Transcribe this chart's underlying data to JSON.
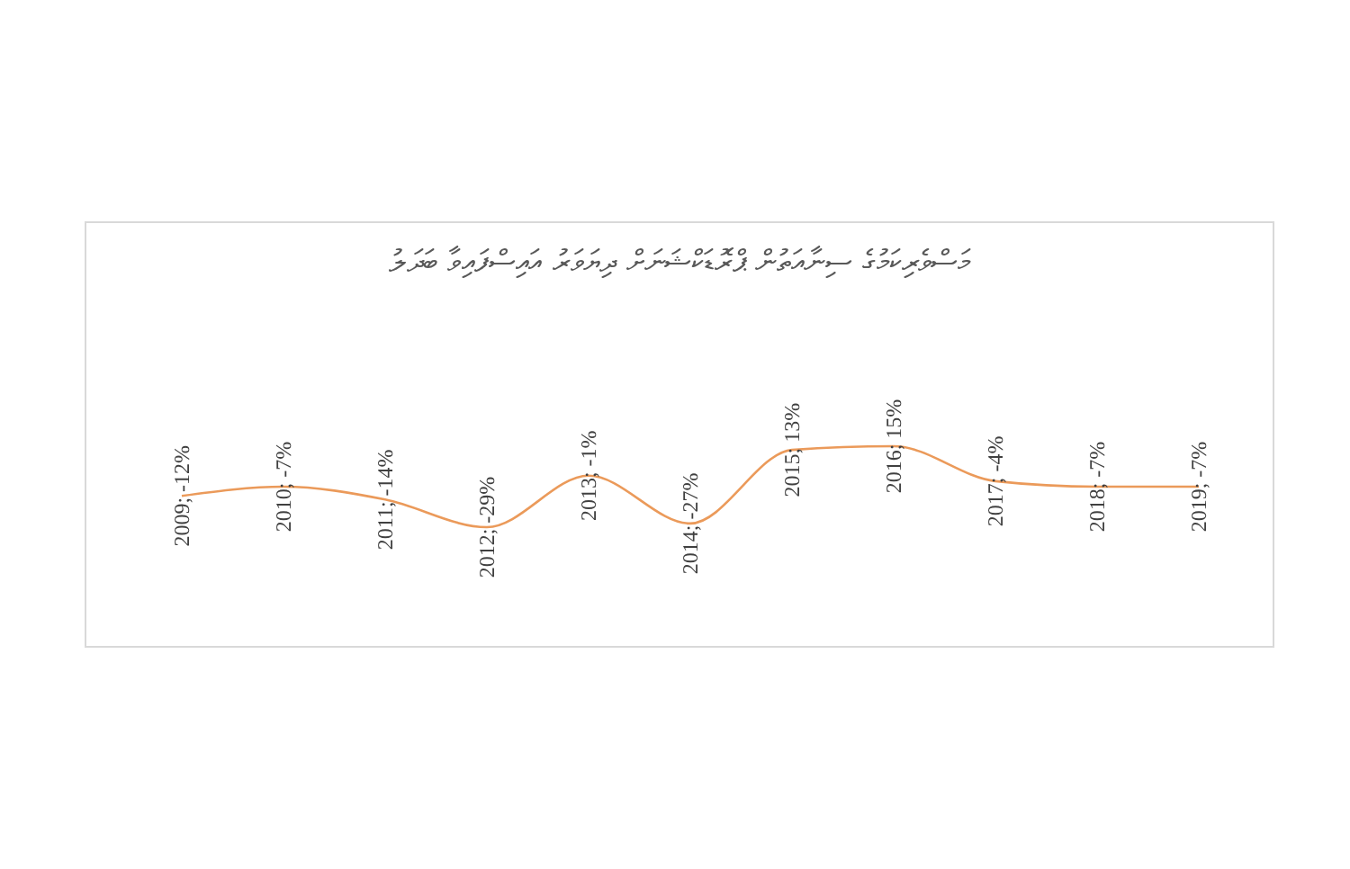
{
  "chart_data": {
    "type": "line",
    "title": "މަސްވެރިކަމުގެ ސިނާއަތުން ޕްރޮޑަކްޝަނަށް ދިޔަވަރު އައިސްފައިވާ ބަދަލު",
    "categories": [
      "2009",
      "2010",
      "2011",
      "2012",
      "2013",
      "2014",
      "2015",
      "2016",
      "2017",
      "2018",
      "2019"
    ],
    "values": [
      -12,
      -7,
      -14,
      -29,
      -1,
      -27,
      13,
      15,
      -4,
      -7,
      -7
    ],
    "value_labels": [
      "; -12%",
      "; -7%",
      "; -14%",
      "; -29%",
      "; -1%",
      "; -27%",
      "; 13%",
      "; 15%",
      "; -4%",
      "; -7%",
      "; -7%"
    ],
    "color": "#eb9a5a",
    "marker": "none",
    "grid": false,
    "legend": false
  }
}
